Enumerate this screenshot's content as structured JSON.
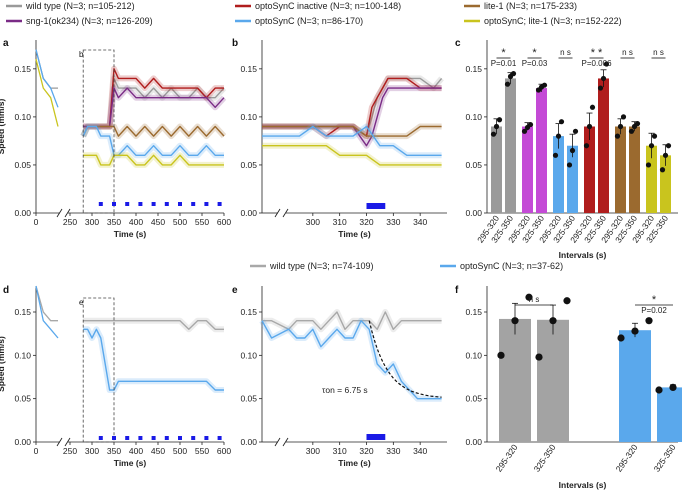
{
  "legend_top": [
    {
      "name": "wild type (N=3; n=105-212)",
      "color": "#9a9a9a"
    },
    {
      "name": "optoSynC inactive (N=3; n=100-148)",
      "color": "#b01d1d"
    },
    {
      "name": "lite-1 (N=3; n=175-233)",
      "color": "#9b6a2f"
    },
    {
      "name": "sng-1(ok234) (N=3; n=126-209)",
      "color": "#7a2b86"
    },
    {
      "name": "optoSynC (N=3; n=86-170)",
      "color": "#5aa8ec"
    },
    {
      "name": "optoSynC; lite-1 (N=3; n=152-222)",
      "color": "#c9c41e"
    }
  ],
  "legend_bottom": [
    {
      "name": "wild type (N=3; n=74-109)",
      "color": "#a8a8a8"
    },
    {
      "name": "optoSynC (N=3; n=37-62)",
      "color": "#5aa8ec"
    }
  ],
  "panel_labels": {
    "a": "a",
    "b": "b",
    "c": "c",
    "d": "d",
    "e": "e",
    "f": "f"
  },
  "inset_labels": {
    "a": "b",
    "d": "e"
  },
  "annotations": {
    "tau": "τon = 6.75 s"
  },
  "chart_data": [
    {
      "id": "a",
      "type": "line",
      "xlabel": "Time (s)",
      "ylabel": "Speed (mm/s)",
      "xticks": [
        0,
        250,
        300,
        350,
        400,
        450,
        500,
        550,
        600
      ],
      "yticks": [
        "0.00",
        "0.05",
        "0.10",
        "0.15"
      ],
      "ylim": [
        0,
        0.18
      ],
      "series": [
        {
          "name": "wild type",
          "color": "#9a9a9a",
          "x": [
            0,
            10,
            20,
            30,
            280,
            290,
            300,
            310,
            320,
            330,
            340,
            350,
            360,
            380,
            400,
            420,
            440,
            460,
            480,
            500,
            520,
            540,
            560,
            580,
            600
          ],
          "values": [
            0.17,
            0.14,
            0.13,
            0.13,
            0.08,
            0.09,
            0.09,
            0.09,
            0.09,
            0.09,
            0.09,
            0.14,
            0.13,
            0.13,
            0.13,
            0.12,
            0.13,
            0.12,
            0.13,
            0.12,
            0.12,
            0.13,
            0.12,
            0.12,
            0.13
          ]
        },
        {
          "name": "optoSynC inactive",
          "color": "#b01d1d",
          "x": [
            280,
            290,
            300,
            310,
            320,
            330,
            340,
            350,
            360,
            380,
            400,
            420,
            440,
            460,
            480,
            500,
            520,
            540,
            560,
            580,
            600
          ],
          "values": [
            0.09,
            0.09,
            0.09,
            0.09,
            0.09,
            0.09,
            0.09,
            0.15,
            0.14,
            0.14,
            0.14,
            0.13,
            0.14,
            0.13,
            0.13,
            0.13,
            0.13,
            0.13,
            0.12,
            0.13,
            0.13
          ]
        },
        {
          "name": "sng-1(ok234)",
          "color": "#7a2b86",
          "x": [
            280,
            290,
            300,
            310,
            320,
            330,
            340,
            350,
            360,
            380,
            400,
            420,
            440,
            460,
            480,
            500,
            520,
            540,
            560,
            580,
            600
          ],
          "values": [
            0.09,
            0.09,
            0.09,
            0.09,
            0.09,
            0.09,
            0.09,
            0.13,
            0.12,
            0.13,
            0.12,
            0.12,
            0.12,
            0.12,
            0.12,
            0.12,
            0.12,
            0.12,
            0.12,
            0.11,
            0.12
          ]
        },
        {
          "name": "lite-1",
          "color": "#9b6a2f",
          "x": [
            280,
            290,
            300,
            310,
            320,
            330,
            340,
            350,
            360,
            380,
            400,
            420,
            440,
            460,
            480,
            500,
            520,
            540,
            560,
            580,
            600
          ],
          "values": [
            0.08,
            0.09,
            0.09,
            0.09,
            0.09,
            0.09,
            0.09,
            0.09,
            0.08,
            0.09,
            0.08,
            0.09,
            0.08,
            0.09,
            0.08,
            0.09,
            0.08,
            0.09,
            0.08,
            0.09,
            0.08
          ]
        },
        {
          "name": "optoSynC",
          "color": "#5aa8ec",
          "x": [
            0,
            10,
            20,
            30,
            280,
            290,
            300,
            310,
            320,
            330,
            340,
            350,
            360,
            380,
            400,
            420,
            440,
            460,
            480,
            500,
            520,
            540,
            560,
            580,
            600
          ],
          "values": [
            0.17,
            0.14,
            0.13,
            0.11,
            0.08,
            0.09,
            0.09,
            0.09,
            0.08,
            0.08,
            0.08,
            0.06,
            0.06,
            0.07,
            0.06,
            0.06,
            0.07,
            0.06,
            0.06,
            0.07,
            0.06,
            0.06,
            0.07,
            0.06,
            0.06
          ]
        },
        {
          "name": "optoSynC; lite-1",
          "color": "#c9c41e",
          "x": [
            0,
            10,
            20,
            30,
            280,
            290,
            300,
            310,
            320,
            330,
            340,
            350,
            360,
            380,
            400,
            420,
            440,
            460,
            480,
            500,
            520,
            540,
            560,
            580,
            600
          ],
          "values": [
            0.16,
            0.13,
            0.12,
            0.09,
            0.06,
            0.06,
            0.06,
            0.06,
            0.05,
            0.05,
            0.05,
            0.06,
            0.06,
            0.06,
            0.05,
            0.05,
            0.06,
            0.05,
            0.05,
            0.06,
            0.05,
            0.05,
            0.05,
            0.05,
            0.05
          ]
        }
      ]
    },
    {
      "id": "b",
      "type": "line",
      "xlabel": "Time (s)",
      "ylabel": "",
      "xticks": [
        300,
        310,
        320,
        330,
        340
      ],
      "yticks": [
        "0.00",
        "0.05",
        "0.10",
        "0.15"
      ],
      "ylim": [
        0,
        0.18
      ],
      "series": [
        {
          "name": "wild type",
          "color": "#9a9a9a",
          "x": [
            285,
            290,
            295,
            300,
            305,
            310,
            315,
            320,
            322,
            324,
            326,
            328,
            330,
            335,
            340,
            345,
            348
          ],
          "values": [
            0.09,
            0.09,
            0.09,
            0.09,
            0.09,
            0.09,
            0.09,
            0.08,
            0.1,
            0.12,
            0.13,
            0.14,
            0.14,
            0.14,
            0.14,
            0.13,
            0.14
          ]
        },
        {
          "name": "optoSynC inactive",
          "color": "#b01d1d",
          "x": [
            285,
            290,
            295,
            300,
            305,
            310,
            315,
            320,
            322,
            324,
            326,
            328,
            330,
            335,
            340,
            345,
            348
          ],
          "values": [
            0.09,
            0.09,
            0.09,
            0.09,
            0.08,
            0.09,
            0.09,
            0.08,
            0.11,
            0.12,
            0.13,
            0.14,
            0.14,
            0.14,
            0.13,
            0.13,
            0.13
          ]
        },
        {
          "name": "sng-1(ok234)",
          "color": "#7a2b86",
          "x": [
            285,
            290,
            295,
            300,
            305,
            310,
            315,
            320,
            322,
            324,
            326,
            328,
            330,
            335,
            340,
            345,
            348
          ],
          "values": [
            0.09,
            0.09,
            0.09,
            0.09,
            0.09,
            0.09,
            0.09,
            0.07,
            0.08,
            0.1,
            0.12,
            0.13,
            0.13,
            0.13,
            0.13,
            0.13,
            0.13
          ]
        },
        {
          "name": "lite-1",
          "color": "#9b6a2f",
          "x": [
            285,
            290,
            295,
            300,
            305,
            310,
            315,
            320,
            325,
            330,
            335,
            340,
            345,
            348
          ],
          "values": [
            0.09,
            0.09,
            0.09,
            0.09,
            0.09,
            0.09,
            0.09,
            0.08,
            0.08,
            0.08,
            0.08,
            0.09,
            0.09,
            0.09
          ]
        },
        {
          "name": "optoSynC",
          "color": "#5aa8ec",
          "x": [
            285,
            290,
            295,
            300,
            305,
            310,
            315,
            320,
            325,
            330,
            335,
            340,
            345,
            348
          ],
          "values": [
            0.08,
            0.08,
            0.08,
            0.09,
            0.08,
            0.08,
            0.08,
            0.09,
            0.07,
            0.07,
            0.06,
            0.06,
            0.06,
            0.06
          ]
        },
        {
          "name": "optoSynC; lite-1",
          "color": "#c9c41e",
          "x": [
            285,
            290,
            295,
            300,
            305,
            310,
            315,
            320,
            325,
            330,
            335,
            340,
            345,
            348
          ],
          "values": [
            0.07,
            0.07,
            0.07,
            0.07,
            0.07,
            0.06,
            0.06,
            0.06,
            0.05,
            0.05,
            0.05,
            0.05,
            0.05,
            0.05
          ]
        }
      ]
    },
    {
      "id": "c",
      "type": "bar",
      "xlabel": "Intervals (s)",
      "ylabel": "",
      "yticks": [
        "0.00",
        "0.05",
        "0.10",
        "0.15"
      ],
      "ylim": [
        0,
        0.18
      ],
      "categories": [
        "295-320",
        "325-350",
        "295-320",
        "325-350",
        "295-320",
        "325-350",
        "295-320",
        "325-350",
        "295-320",
        "325-350",
        "295-320",
        "325-350"
      ],
      "values": [
        0.09,
        0.14,
        0.09,
        0.13,
        0.08,
        0.07,
        0.09,
        0.14,
        0.09,
        0.09,
        0.07,
        0.06
      ],
      "errors": [
        0.008,
        0.006,
        0.004,
        0.004,
        0.013,
        0.012,
        0.014,
        0.009,
        0.008,
        0.005,
        0.013,
        0.011
      ],
      "colors": [
        "#9a9a9a",
        "#9a9a9a",
        "#c44ad6",
        "#c44ad6",
        "#5aa8ec",
        "#5aa8ec",
        "#b01d1d",
        "#b01d1d",
        "#9b6a2f",
        "#9b6a2f",
        "#c9c41e",
        "#c9c41e"
      ],
      "points": [
        [
          0.082,
          0.09,
          0.097
        ],
        [
          0.134,
          0.142,
          0.145
        ],
        [
          0.085,
          0.089,
          0.092
        ],
        [
          0.128,
          0.131,
          0.133
        ],
        [
          0.06,
          0.08,
          0.095
        ],
        [
          0.05,
          0.065,
          0.085
        ],
        [
          0.07,
          0.09,
          0.11
        ],
        [
          0.13,
          0.14,
          0.155
        ],
        [
          0.08,
          0.09,
          0.1
        ],
        [
          0.085,
          0.09,
          0.093
        ],
        [
          0.05,
          0.07,
          0.08
        ],
        [
          0.045,
          0.06,
          0.07
        ]
      ],
      "significance": [
        {
          "label": "P=0.01",
          "stars": "*",
          "ns": false
        },
        {
          "label": "P=0.03",
          "stars": "*",
          "ns": false
        },
        {
          "label": "n s",
          "stars": "",
          "ns": true
        },
        {
          "label": "P=0.006",
          "stars": "* *",
          "ns": false
        },
        {
          "label": "n s",
          "stars": "",
          "ns": true
        },
        {
          "label": "n s",
          "stars": "",
          "ns": true
        }
      ]
    },
    {
      "id": "d",
      "type": "line",
      "xlabel": "Time (s)",
      "ylabel": "Speed (mm/s)",
      "xticks": [
        0,
        250,
        300,
        350,
        400,
        450,
        500,
        550,
        600
      ],
      "yticks": [
        "0.00",
        "0.05",
        "0.10",
        "0.15"
      ],
      "ylim": [
        0,
        0.18
      ],
      "series": [
        {
          "name": "wild type",
          "color": "#a8a8a8",
          "x": [
            0,
            10,
            20,
            30,
            280,
            290,
            300,
            310,
            320,
            330,
            340,
            350,
            360,
            380,
            400,
            420,
            440,
            460,
            480,
            500,
            520,
            540,
            560,
            580,
            600
          ],
          "values": [
            0.18,
            0.15,
            0.14,
            0.14,
            0.14,
            0.14,
            0.14,
            0.14,
            0.14,
            0.14,
            0.14,
            0.14,
            0.14,
            0.14,
            0.14,
            0.14,
            0.14,
            0.14,
            0.14,
            0.14,
            0.13,
            0.14,
            0.14,
            0.13,
            0.13
          ]
        },
        {
          "name": "optoSynC",
          "color": "#5aa8ec",
          "x": [
            0,
            10,
            20,
            30,
            280,
            290,
            300,
            310,
            320,
            330,
            340,
            350,
            360,
            380,
            400,
            420,
            440,
            460,
            480,
            500,
            520,
            540,
            560,
            580,
            600
          ],
          "values": [
            0.18,
            0.14,
            0.13,
            0.12,
            0.13,
            0.13,
            0.12,
            0.13,
            0.12,
            0.09,
            0.06,
            0.06,
            0.07,
            0.07,
            0.07,
            0.07,
            0.07,
            0.07,
            0.07,
            0.07,
            0.07,
            0.07,
            0.07,
            0.06,
            0.06
          ]
        }
      ]
    },
    {
      "id": "e",
      "type": "line",
      "xlabel": "Time (s)",
      "ylabel": "",
      "xticks": [
        300,
        310,
        320,
        330,
        340
      ],
      "yticks": [
        "0.00",
        "0.05",
        "0.10",
        "0.15"
      ],
      "ylim": [
        0,
        0.18
      ],
      "series": [
        {
          "name": "wild type",
          "color": "#a8a8a8",
          "x": [
            285,
            288,
            291,
            294,
            297,
            300,
            303,
            306,
            309,
            312,
            315,
            318,
            321,
            324,
            327,
            330,
            333,
            336,
            339,
            342,
            345,
            348
          ],
          "values": [
            0.14,
            0.14,
            0.13,
            0.14,
            0.14,
            0.14,
            0.13,
            0.14,
            0.15,
            0.13,
            0.14,
            0.14,
            0.14,
            0.13,
            0.15,
            0.13,
            0.14,
            0.14,
            0.14,
            0.14,
            0.14,
            0.14
          ]
        },
        {
          "name": "optoSynC",
          "color": "#5aa8ec",
          "x": [
            285,
            288,
            291,
            294,
            297,
            300,
            303,
            306,
            309,
            312,
            315,
            318,
            321,
            324,
            327,
            330,
            333,
            336,
            339,
            342,
            345,
            348
          ],
          "values": [
            0.14,
            0.12,
            0.13,
            0.12,
            0.12,
            0.13,
            0.11,
            0.12,
            0.13,
            0.12,
            0.12,
            0.14,
            0.13,
            0.09,
            0.08,
            0.09,
            0.07,
            0.06,
            0.05,
            0.05,
            0.05,
            0.05
          ]
        }
      ]
    },
    {
      "id": "f",
      "type": "bar",
      "xlabel": "Intervals (s)",
      "ylabel": "",
      "yticks": [
        "0.00",
        "0.05",
        "0.10",
        "0.15"
      ],
      "ylim": [
        0,
        0.18
      ],
      "categories": [
        "295-320",
        "325-350",
        "295-320",
        "325-350"
      ],
      "values": [
        0.142,
        0.141,
        0.129,
        0.063
      ],
      "errors": [
        0.018,
        0.017,
        0.008,
        0.003
      ],
      "colors": [
        "#a3a3a3",
        "#a3a3a3",
        "#5aa8ec",
        "#5aa8ec"
      ],
      "points": [
        [
          0.1,
          0.14,
          0.167
        ],
        [
          0.098,
          0.14,
          0.163
        ],
        [
          0.12,
          0.128,
          0.14
        ],
        [
          0.06,
          0.063,
          0.066
        ]
      ],
      "significance": [
        {
          "label": "n s",
          "stars": "",
          "ns": true
        },
        {
          "label": "P=0.02",
          "stars": "*",
          "ns": false
        }
      ]
    }
  ]
}
